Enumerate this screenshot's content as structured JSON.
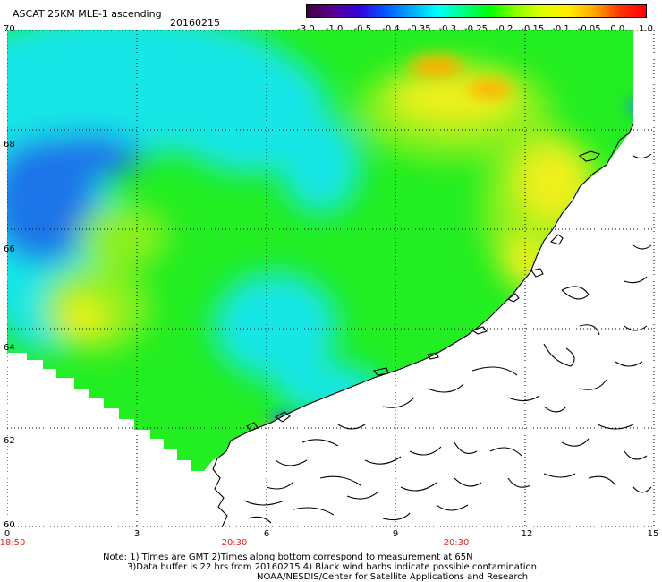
{
  "header": {
    "title": "ASCAT 25KM MLE-1 ascending",
    "date": "20160215"
  },
  "colorbar": {
    "labels": [
      "-3.0",
      "-1.0",
      "-0.5",
      "-0.4",
      "-0.35",
      "-0.3",
      "-0.25",
      "-0.2",
      "-0.15",
      "-0.1",
      "-0.05",
      "0.0",
      "1.0"
    ],
    "colors": [
      "#400040",
      "#5a0090",
      "#3300dd",
      "#0055ff",
      "#00aaff",
      "#00ffff",
      "#00ff88",
      "#00ff00",
      "#88ff00",
      "#ddff00",
      "#ffee00",
      "#ffaa00",
      "#ff3300",
      "#ff0000"
    ]
  },
  "map": {
    "lat_labels": [
      "70",
      "68",
      "66",
      "64",
      "62",
      "60"
    ],
    "lon_labels": [
      "0",
      "3",
      "6",
      "9",
      "12",
      "15"
    ],
    "time_labels": [
      "18:50",
      "20:30",
      "20:30"
    ],
    "field_colors": {
      "blue": "#1f74e8",
      "cyan": "#12e6e6",
      "green": "#22ee22",
      "lime": "#8cf01e",
      "yellow": "#f0f01e",
      "orange": "#ffb000",
      "land": "#ffffff"
    }
  },
  "notes": {
    "line1": "Note: 1) Times are GMT 2)Times along bottom correspond to measurement at 65N",
    "line2": "3)Data buffer is 22 hrs from 20160215 4) Black wind barbs indicate possible contamination",
    "line3": "NOAA/NESDIS/Center for Satellite Applications and Research"
  }
}
